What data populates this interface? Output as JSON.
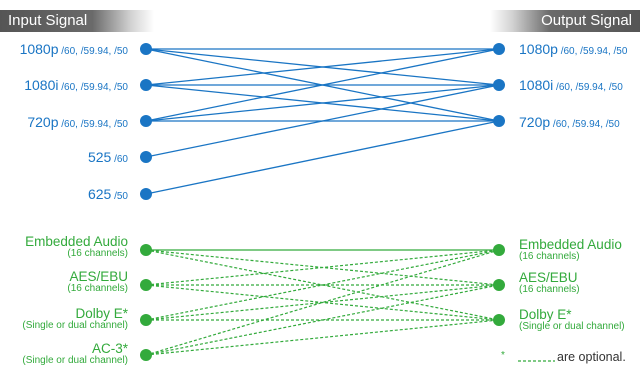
{
  "header": {
    "input_title": "Input Signal",
    "output_title": "Output Signal"
  },
  "video_inputs": [
    {
      "main": "1080p",
      "sub": " /60, /59.94, /50"
    },
    {
      "main": "1080i",
      "sub": " /60, /59.94, /50"
    },
    {
      "main": "720p",
      "sub": " /60, /59.94, /50"
    },
    {
      "main": "525",
      "sub": " /60"
    },
    {
      "main": "625",
      "sub": " /50"
    }
  ],
  "video_outputs": [
    {
      "main": "1080p",
      "sub": " /60, /59.94, /50"
    },
    {
      "main": "1080i",
      "sub": " /60, /59.94, /50"
    },
    {
      "main": "720p",
      "sub": " /60, /59.94, /50"
    }
  ],
  "audio_inputs": [
    {
      "main": "Embedded Audio",
      "sub": "(16 channels)"
    },
    {
      "main": "AES/EBU",
      "sub": "(16 channels)"
    },
    {
      "main": "Dolby E*",
      "sub": "(Single or dual channel)"
    },
    {
      "main": "AC-3*",
      "sub": "(Single or dual channel)"
    }
  ],
  "audio_outputs": [
    {
      "main": "Embedded Audio",
      "sub": "(16 channels)"
    },
    {
      "main": "AES/EBU",
      "sub": "(16 channels)"
    },
    {
      "main": "Dolby E*",
      "sub": "(Single or dual channel)"
    }
  ],
  "video_connections": [
    [
      0,
      0
    ],
    [
      0,
      1
    ],
    [
      0,
      2
    ],
    [
      1,
      0
    ],
    [
      1,
      1
    ],
    [
      1,
      2
    ],
    [
      2,
      0
    ],
    [
      2,
      1
    ],
    [
      2,
      2
    ],
    [
      3,
      1
    ],
    [
      4,
      2
    ]
  ],
  "audio_connections": [
    [
      0,
      0,
      "solid"
    ],
    [
      0,
      1,
      "dashed"
    ],
    [
      0,
      2,
      "dashed"
    ],
    [
      1,
      0,
      "dashed"
    ],
    [
      1,
      1,
      "dashed"
    ],
    [
      1,
      2,
      "dashed"
    ],
    [
      2,
      0,
      "dashed"
    ],
    [
      2,
      1,
      "dashed"
    ],
    [
      2,
      2,
      "dashed"
    ],
    [
      3,
      0,
      "dashed"
    ],
    [
      3,
      1,
      "dashed"
    ],
    [
      3,
      2,
      "dashed"
    ]
  ],
  "colors": {
    "video": "#1a75c4",
    "audio": "#33aa3c"
  },
  "legend": {
    "asterisk": "*",
    "text": "are optional."
  }
}
